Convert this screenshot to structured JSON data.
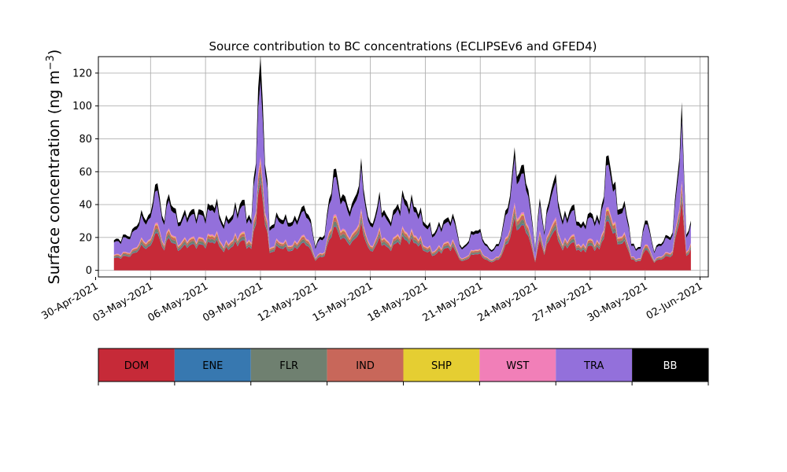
{
  "chart_data": {
    "type": "area",
    "stacked": true,
    "title": "Source contribution to BC concentrations (ECLIPSEv6 and GFED4)",
    "ylabel_main": "Surface concentration (ng m",
    "ylabel_sup": "−3",
    "ylabel_end": ")",
    "xlabel": "",
    "x_start": "2021-04-30",
    "x_end": "2021-06-02",
    "data_start": "2021-05-01",
    "data_end": "2021-06-01",
    "xticks": [
      "30-Apr-2021",
      "03-May-2021",
      "06-May-2021",
      "09-May-2021",
      "12-May-2021",
      "15-May-2021",
      "18-May-2021",
      "21-May-2021",
      "24-May-2021",
      "27-May-2021",
      "30-May-2021",
      "02-Jun-2021"
    ],
    "ylim": [
      -4,
      130
    ],
    "yticks": [
      0,
      20,
      40,
      60,
      80,
      100,
      120
    ],
    "grid": true,
    "legend_position": "bottom colorbar",
    "series": [
      {
        "name": "DOM",
        "color": "#c62a38"
      },
      {
        "name": "ENE",
        "color": "#3778b0"
      },
      {
        "name": "FLR",
        "color": "#6f8070"
      },
      {
        "name": "IND",
        "color": "#c8675a"
      },
      {
        "name": "SHP",
        "color": "#e5ce32"
      },
      {
        "name": "WST",
        "color": "#f17fb8"
      },
      {
        "name": "TRA",
        "color": "#9370db"
      },
      {
        "name": "BB",
        "color": "#000000"
      }
    ],
    "total_profile": [
      [
        "2021-05-01",
        17
      ],
      [
        "2021-05-02",
        22
      ],
      [
        "2021-05-02T12",
        34
      ],
      [
        "2021-05-03",
        33
      ],
      [
        "2021-05-03T06",
        57
      ],
      [
        "2021-05-03T18",
        30
      ],
      [
        "2021-05-04",
        48
      ],
      [
        "2021-05-04T12",
        30
      ],
      [
        "2021-05-05",
        36
      ],
      [
        "2021-05-06",
        36
      ],
      [
        "2021-05-06T12",
        43
      ],
      [
        "2021-05-07",
        28
      ],
      [
        "2021-05-08",
        43
      ],
      [
        "2021-05-08T12",
        30
      ],
      [
        "2021-05-09",
        125
      ],
      [
        "2021-05-09T12",
        25
      ],
      [
        "2021-05-10",
        34
      ],
      [
        "2021-05-10T18",
        28
      ],
      [
        "2021-05-11",
        34
      ],
      [
        "2021-05-11T12",
        40
      ],
      [
        "2021-05-12",
        15
      ],
      [
        "2021-05-12T12",
        22
      ],
      [
        "2021-05-13",
        63
      ],
      [
        "2021-05-13T12",
        45
      ],
      [
        "2021-05-14",
        38
      ],
      [
        "2021-05-14T12",
        62
      ],
      [
        "2021-05-15",
        25
      ],
      [
        "2021-05-15T12",
        44
      ],
      [
        "2021-05-16",
        30
      ],
      [
        "2021-05-16T18",
        45
      ],
      [
        "2021-05-17",
        43
      ],
      [
        "2021-05-17T12",
        40
      ],
      [
        "2021-05-18",
        28
      ],
      [
        "2021-05-18T12",
        22
      ],
      [
        "2021-05-19",
        30
      ],
      [
        "2021-05-19T12",
        33
      ],
      [
        "2021-05-20",
        12
      ],
      [
        "2021-05-20T18",
        25
      ],
      [
        "2021-05-21",
        22
      ],
      [
        "2021-05-21T12",
        12
      ],
      [
        "2021-05-22",
        15
      ],
      [
        "2021-05-22T12",
        40
      ],
      [
        "2021-05-22T21",
        70
      ],
      [
        "2021-05-23",
        63
      ],
      [
        "2021-05-23T12",
        61
      ],
      [
        "2021-05-24",
        13
      ],
      [
        "2021-05-24T06",
        43
      ],
      [
        "2021-05-24T12",
        25
      ],
      [
        "2021-05-25",
        60
      ],
      [
        "2021-05-25T12",
        30
      ],
      [
        "2021-05-26",
        40
      ],
      [
        "2021-05-26T12",
        26
      ],
      [
        "2021-05-27",
        35
      ],
      [
        "2021-05-27T12",
        30
      ],
      [
        "2021-05-28",
        73
      ],
      [
        "2021-05-28T12",
        40
      ],
      [
        "2021-05-29",
        38
      ],
      [
        "2021-05-29T06",
        15
      ],
      [
        "2021-05-29T18",
        13
      ],
      [
        "2021-05-30",
        33
      ],
      [
        "2021-05-30T12",
        12
      ],
      [
        "2021-05-31",
        18
      ],
      [
        "2021-05-31T12",
        22
      ],
      [
        "2021-06-01",
        95
      ],
      [
        "2021-06-01T06",
        22
      ],
      [
        "2021-06-01T12",
        28
      ]
    ],
    "source_fractions": {
      "DOM": 0.42,
      "ENE": 0.01,
      "FLR": 0.04,
      "IND": 0.04,
      "SHP": 0.01,
      "WST": 0.02,
      "TRA": 0.38,
      "BB": 0.08
    }
  }
}
